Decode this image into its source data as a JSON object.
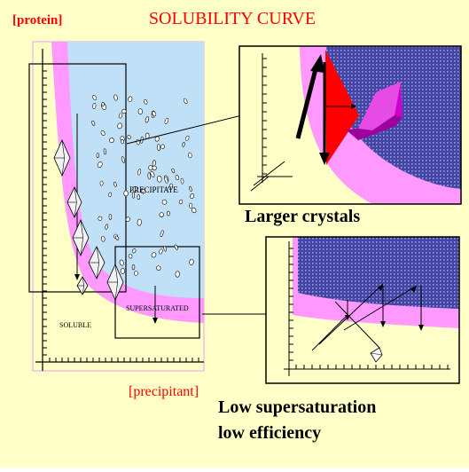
{
  "title": "SOLUBILITY CURVE",
  "axis_labels": {
    "y": "[protein]",
    "x": "[precipitant]"
  },
  "regions": {
    "soluble": "SOLUBLE",
    "supersaturated": "SUPERSATURATED",
    "precipitate": "PRECIPITATE"
  },
  "captions": {
    "larger_crystals": "Larger crystals",
    "low_supersaturation_line1": "Low supersaturation",
    "low_supersaturation_line2": "low efficiency"
  },
  "colors": {
    "background": "#FFFFC8",
    "pink": "#FF99FF",
    "blue": "#BFE0F7",
    "navy": "#3D3FA0",
    "red": "#FF0000",
    "magenta": "#CC00CC",
    "title_red": "#FF0000"
  }
}
